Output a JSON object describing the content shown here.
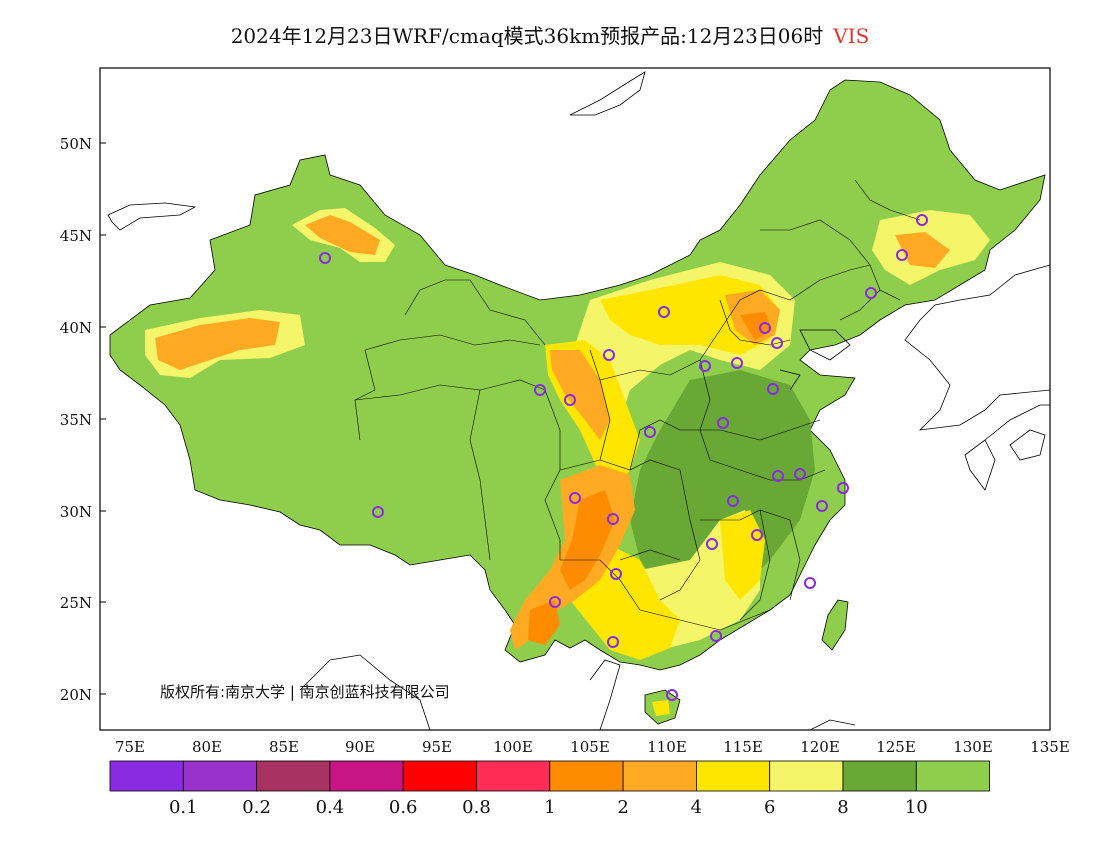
{
  "title": {
    "main": "2024年12月23日WRF/cmaq模式36km预报产品:12月23日06时",
    "variable": "VIS"
  },
  "copyright": "版权所有:南京大学 | 南京创蓝科技有限公司",
  "axes": {
    "lon_labels": [
      "75E",
      "80E",
      "85E",
      "90E",
      "95E",
      "100E",
      "105E",
      "110E",
      "115E",
      "120E",
      "125E",
      "130E",
      "135E"
    ],
    "lat_labels": [
      "50N",
      "45N",
      "40N",
      "35N",
      "30N",
      "25N",
      "20N"
    ]
  },
  "colorbar": {
    "colors": [
      "#8a2be2",
      "#9932cc",
      "#a83262",
      "#c71585",
      "#ff0000",
      "#ff2d55",
      "#ff8c00",
      "#ffaa22",
      "#ffe600",
      "#f5f56a",
      "#6aa836",
      "#8fce4c"
    ],
    "labels": [
      "0.1",
      "0.2",
      "0.4",
      "0.6",
      "0.8",
      "1",
      "2",
      "4",
      "6",
      "8",
      "10"
    ]
  },
  "legend_colors": {
    "vis_ge_10": "#8fce4c",
    "vis_8_10": "#6aa836",
    "vis_6_8": "#f5f56a",
    "vis_4_6": "#ffe600",
    "vis_2_4": "#ffaa22",
    "vis_1_2": "#ff8c00",
    "city_marker": "#8a2be2"
  },
  "icons": {
    "city_marker": "circle-icon"
  }
}
